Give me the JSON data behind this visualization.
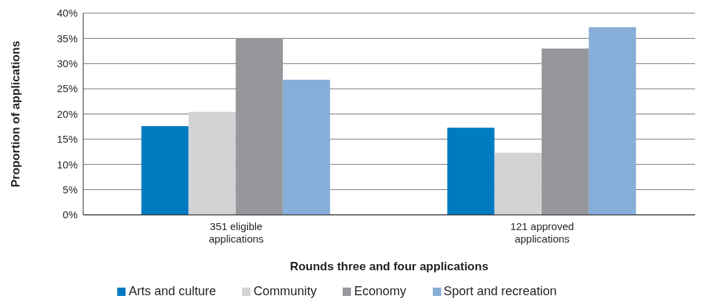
{
  "chart_data": {
    "type": "bar",
    "xlabel": "Rounds three and four applications",
    "ylabel": "Proportion of applications",
    "categories": [
      "351 eligible applications",
      "121 approved applications"
    ],
    "series": [
      {
        "name": "Arts and culture",
        "color": "#007bc2",
        "values": [
          17.6,
          17.3
        ]
      },
      {
        "name": "Community",
        "color": "#d1d3d4",
        "values": [
          20.4,
          12.3
        ]
      },
      {
        "name": "Economy",
        "color": "#96979b",
        "values": [
          35.0,
          33.0
        ]
      },
      {
        "name": "Sport and recreation",
        "color": "#87aed9",
        "values": [
          26.8,
          37.2
        ]
      }
    ],
    "ylim": [
      0,
      40
    ],
    "yticks": [
      {
        "value": 0,
        "label": "0%"
      },
      {
        "value": 5,
        "label": "5%"
      },
      {
        "value": 10,
        "label": "10%"
      },
      {
        "value": 15,
        "label": "15%"
      },
      {
        "value": 20,
        "label": "20%"
      },
      {
        "value": 25,
        "label": "25%"
      },
      {
        "value": 30,
        "label": "30%"
      },
      {
        "value": 35,
        "label": "35%"
      },
      {
        "value": 40,
        "label": "40%"
      }
    ],
    "grid": "y",
    "legend": "bottom"
  }
}
